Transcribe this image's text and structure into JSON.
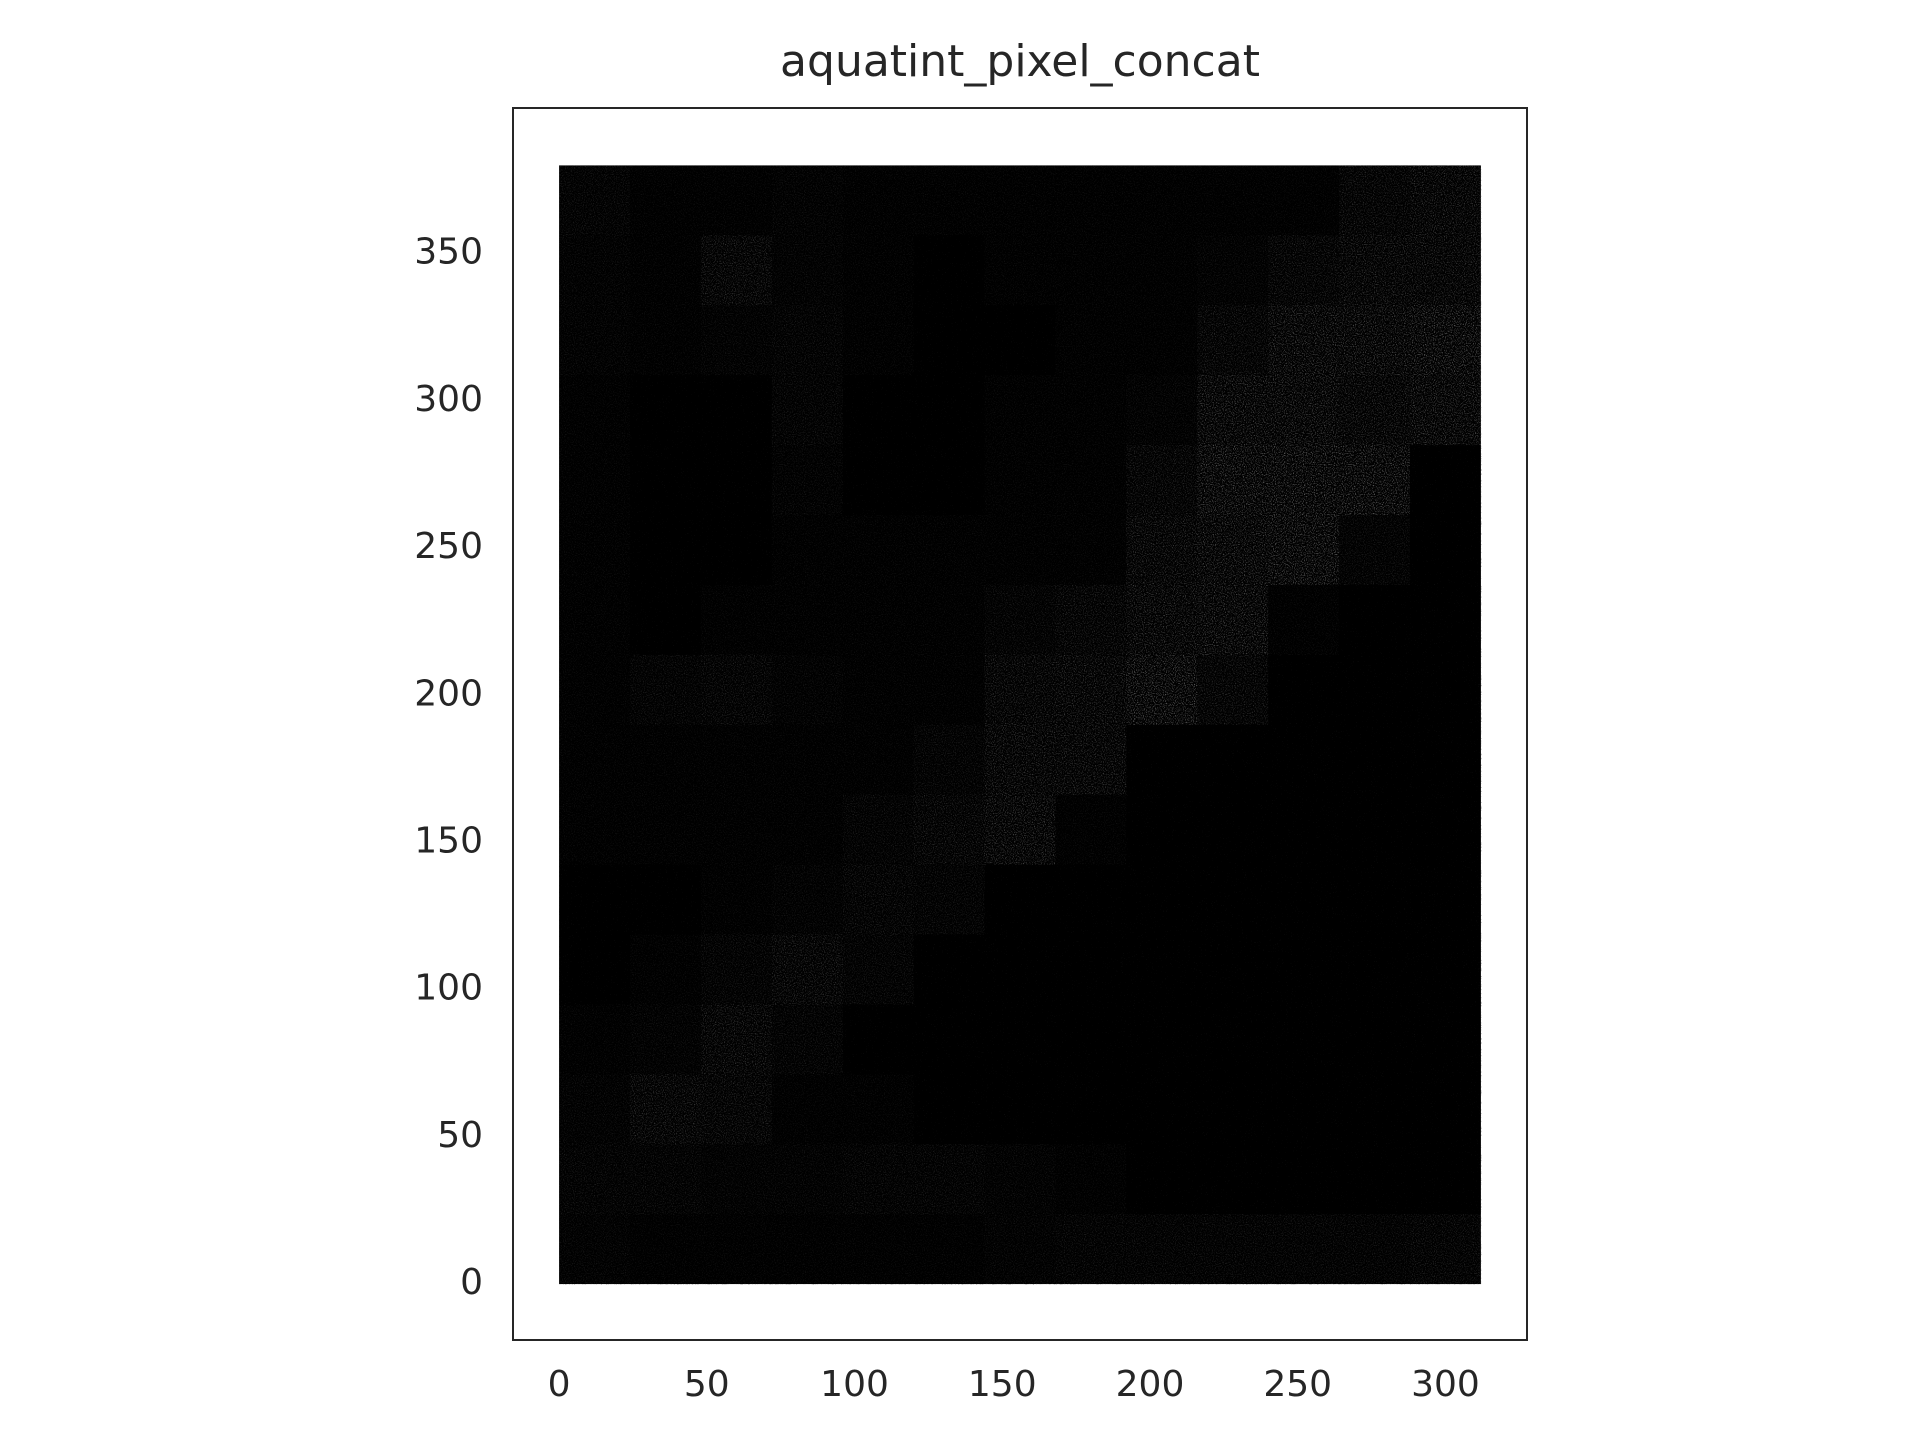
{
  "chart_data": {
    "type": "image",
    "title": "aquatint_pixel_concat",
    "extent": [
      0,
      312,
      0,
      380
    ],
    "intensity": [
      [
        0.2,
        0.1,
        0.1,
        0.15,
        0.1,
        0.1,
        0.1,
        0.1,
        0.1,
        0.1,
        0.1,
        0.3,
        0.4
      ],
      [
        0.15,
        0.1,
        0.35,
        0.15,
        0.1,
        0.05,
        0.1,
        0.1,
        0.1,
        0.15,
        0.3,
        0.4,
        0.4
      ],
      [
        0.15,
        0.1,
        0.15,
        0.2,
        0.1,
        0.05,
        0.05,
        0.1,
        0.1,
        0.3,
        0.5,
        0.5,
        0.6
      ],
      [
        0.1,
        0.05,
        0.05,
        0.2,
        0.05,
        0.05,
        0.1,
        0.1,
        0.15,
        0.5,
        0.5,
        0.4,
        0.5
      ],
      [
        0.1,
        0.05,
        0.05,
        0.15,
        0.05,
        0.05,
        0.1,
        0.1,
        0.3,
        0.6,
        0.6,
        0.6,
        0.05
      ],
      [
        0.1,
        0.05,
        0.05,
        0.1,
        0.1,
        0.1,
        0.1,
        0.1,
        0.4,
        0.5,
        0.6,
        0.2,
        0.05
      ],
      [
        0.1,
        0.05,
        0.1,
        0.1,
        0.1,
        0.1,
        0.2,
        0.3,
        0.45,
        0.5,
        0.1,
        0.05,
        0.05
      ],
      [
        0.1,
        0.2,
        0.25,
        0.15,
        0.1,
        0.1,
        0.35,
        0.4,
        0.6,
        0.3,
        0.05,
        0.05,
        0.05
      ],
      [
        0.1,
        0.1,
        0.1,
        0.1,
        0.1,
        0.2,
        0.4,
        0.4,
        0.05,
        0.05,
        0.05,
        0.05,
        0.05
      ],
      [
        0.1,
        0.1,
        0.1,
        0.1,
        0.2,
        0.3,
        0.45,
        0.1,
        0.05,
        0.05,
        0.05,
        0.05,
        0.05
      ],
      [
        0.05,
        0.05,
        0.1,
        0.15,
        0.25,
        0.2,
        0.05,
        0.05,
        0.05,
        0.05,
        0.05,
        0.05,
        0.05
      ],
      [
        0.05,
        0.1,
        0.2,
        0.35,
        0.2,
        0.05,
        0.05,
        0.05,
        0.05,
        0.05,
        0.05,
        0.05,
        0.05
      ],
      [
        0.1,
        0.15,
        0.35,
        0.2,
        0.05,
        0.05,
        0.05,
        0.05,
        0.05,
        0.05,
        0.05,
        0.05,
        0.05
      ],
      [
        0.15,
        0.35,
        0.3,
        0.1,
        0.1,
        0.05,
        0.05,
        0.05,
        0.05,
        0.05,
        0.05,
        0.05,
        0.05
      ],
      [
        0.2,
        0.2,
        0.15,
        0.15,
        0.2,
        0.2,
        0.15,
        0.1,
        0.05,
        0.05,
        0.05,
        0.05,
        0.05
      ],
      [
        0.15,
        0.1,
        0.1,
        0.1,
        0.1,
        0.1,
        0.15,
        0.2,
        0.2,
        0.2,
        0.2,
        0.2,
        0.25
      ]
    ],
    "xlim": [
      -15.6,
      327.6
    ],
    "ylim": [
      -19,
      399.5
    ],
    "xticks": [
      0,
      50,
      100,
      150,
      200,
      250,
      300
    ],
    "yticks": [
      0,
      50,
      100,
      150,
      200,
      250,
      300,
      350
    ]
  }
}
